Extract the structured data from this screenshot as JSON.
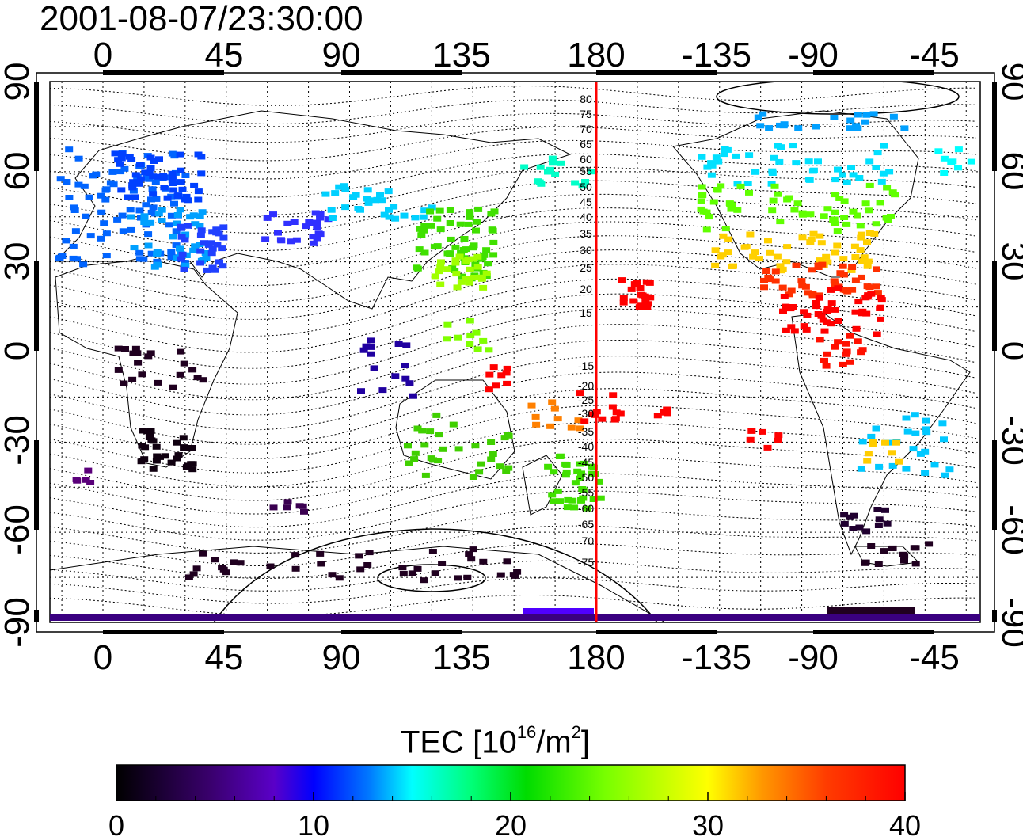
{
  "title": "2001-08-07/23:30:00",
  "map": {
    "top_tick_labels": [
      "0",
      "45",
      "90",
      "135",
      "180",
      "-135",
      "-90",
      "-45"
    ],
    "bottom_tick_labels": [
      "0",
      "45",
      "90",
      "135",
      "180",
      "-135",
      "-90",
      "-45"
    ],
    "left_tick_labels": [
      "90",
      "60",
      "30",
      "0",
      "-30",
      "-60",
      "-90"
    ],
    "right_tick_labels": [
      "90",
      "60",
      "30",
      "0",
      "-30",
      "-60",
      "-90"
    ],
    "contour_labels": [
      "80",
      "75",
      "70",
      "65",
      "60",
      "55",
      "50",
      "45",
      "40",
      "35",
      "30",
      "25",
      "20",
      "15",
      "-15",
      "-20",
      "-25",
      "-30",
      "-35",
      "-40",
      "-45",
      "-50",
      "-55",
      "-60",
      "-65",
      "-70",
      "-75"
    ],
    "midnight_line_color": "#ff0000"
  },
  "colorbar": {
    "label_main": "TEC  [10",
    "label_exp1": "16",
    "label_mid": "/m",
    "label_exp2": "2",
    "label_end": "]",
    "tick_labels": [
      "0",
      "10",
      "20",
      "30",
      "40"
    ],
    "min": 0,
    "max": 40,
    "colors": [
      "#000000",
      "#3a006e",
      "#5a00c8",
      "#0000ff",
      "#0078ff",
      "#00ffff",
      "#00ff78",
      "#00dc00",
      "#78ff00",
      "#ffff00",
      "#ff9600",
      "#ff3c00",
      "#ff0000"
    ]
  }
}
